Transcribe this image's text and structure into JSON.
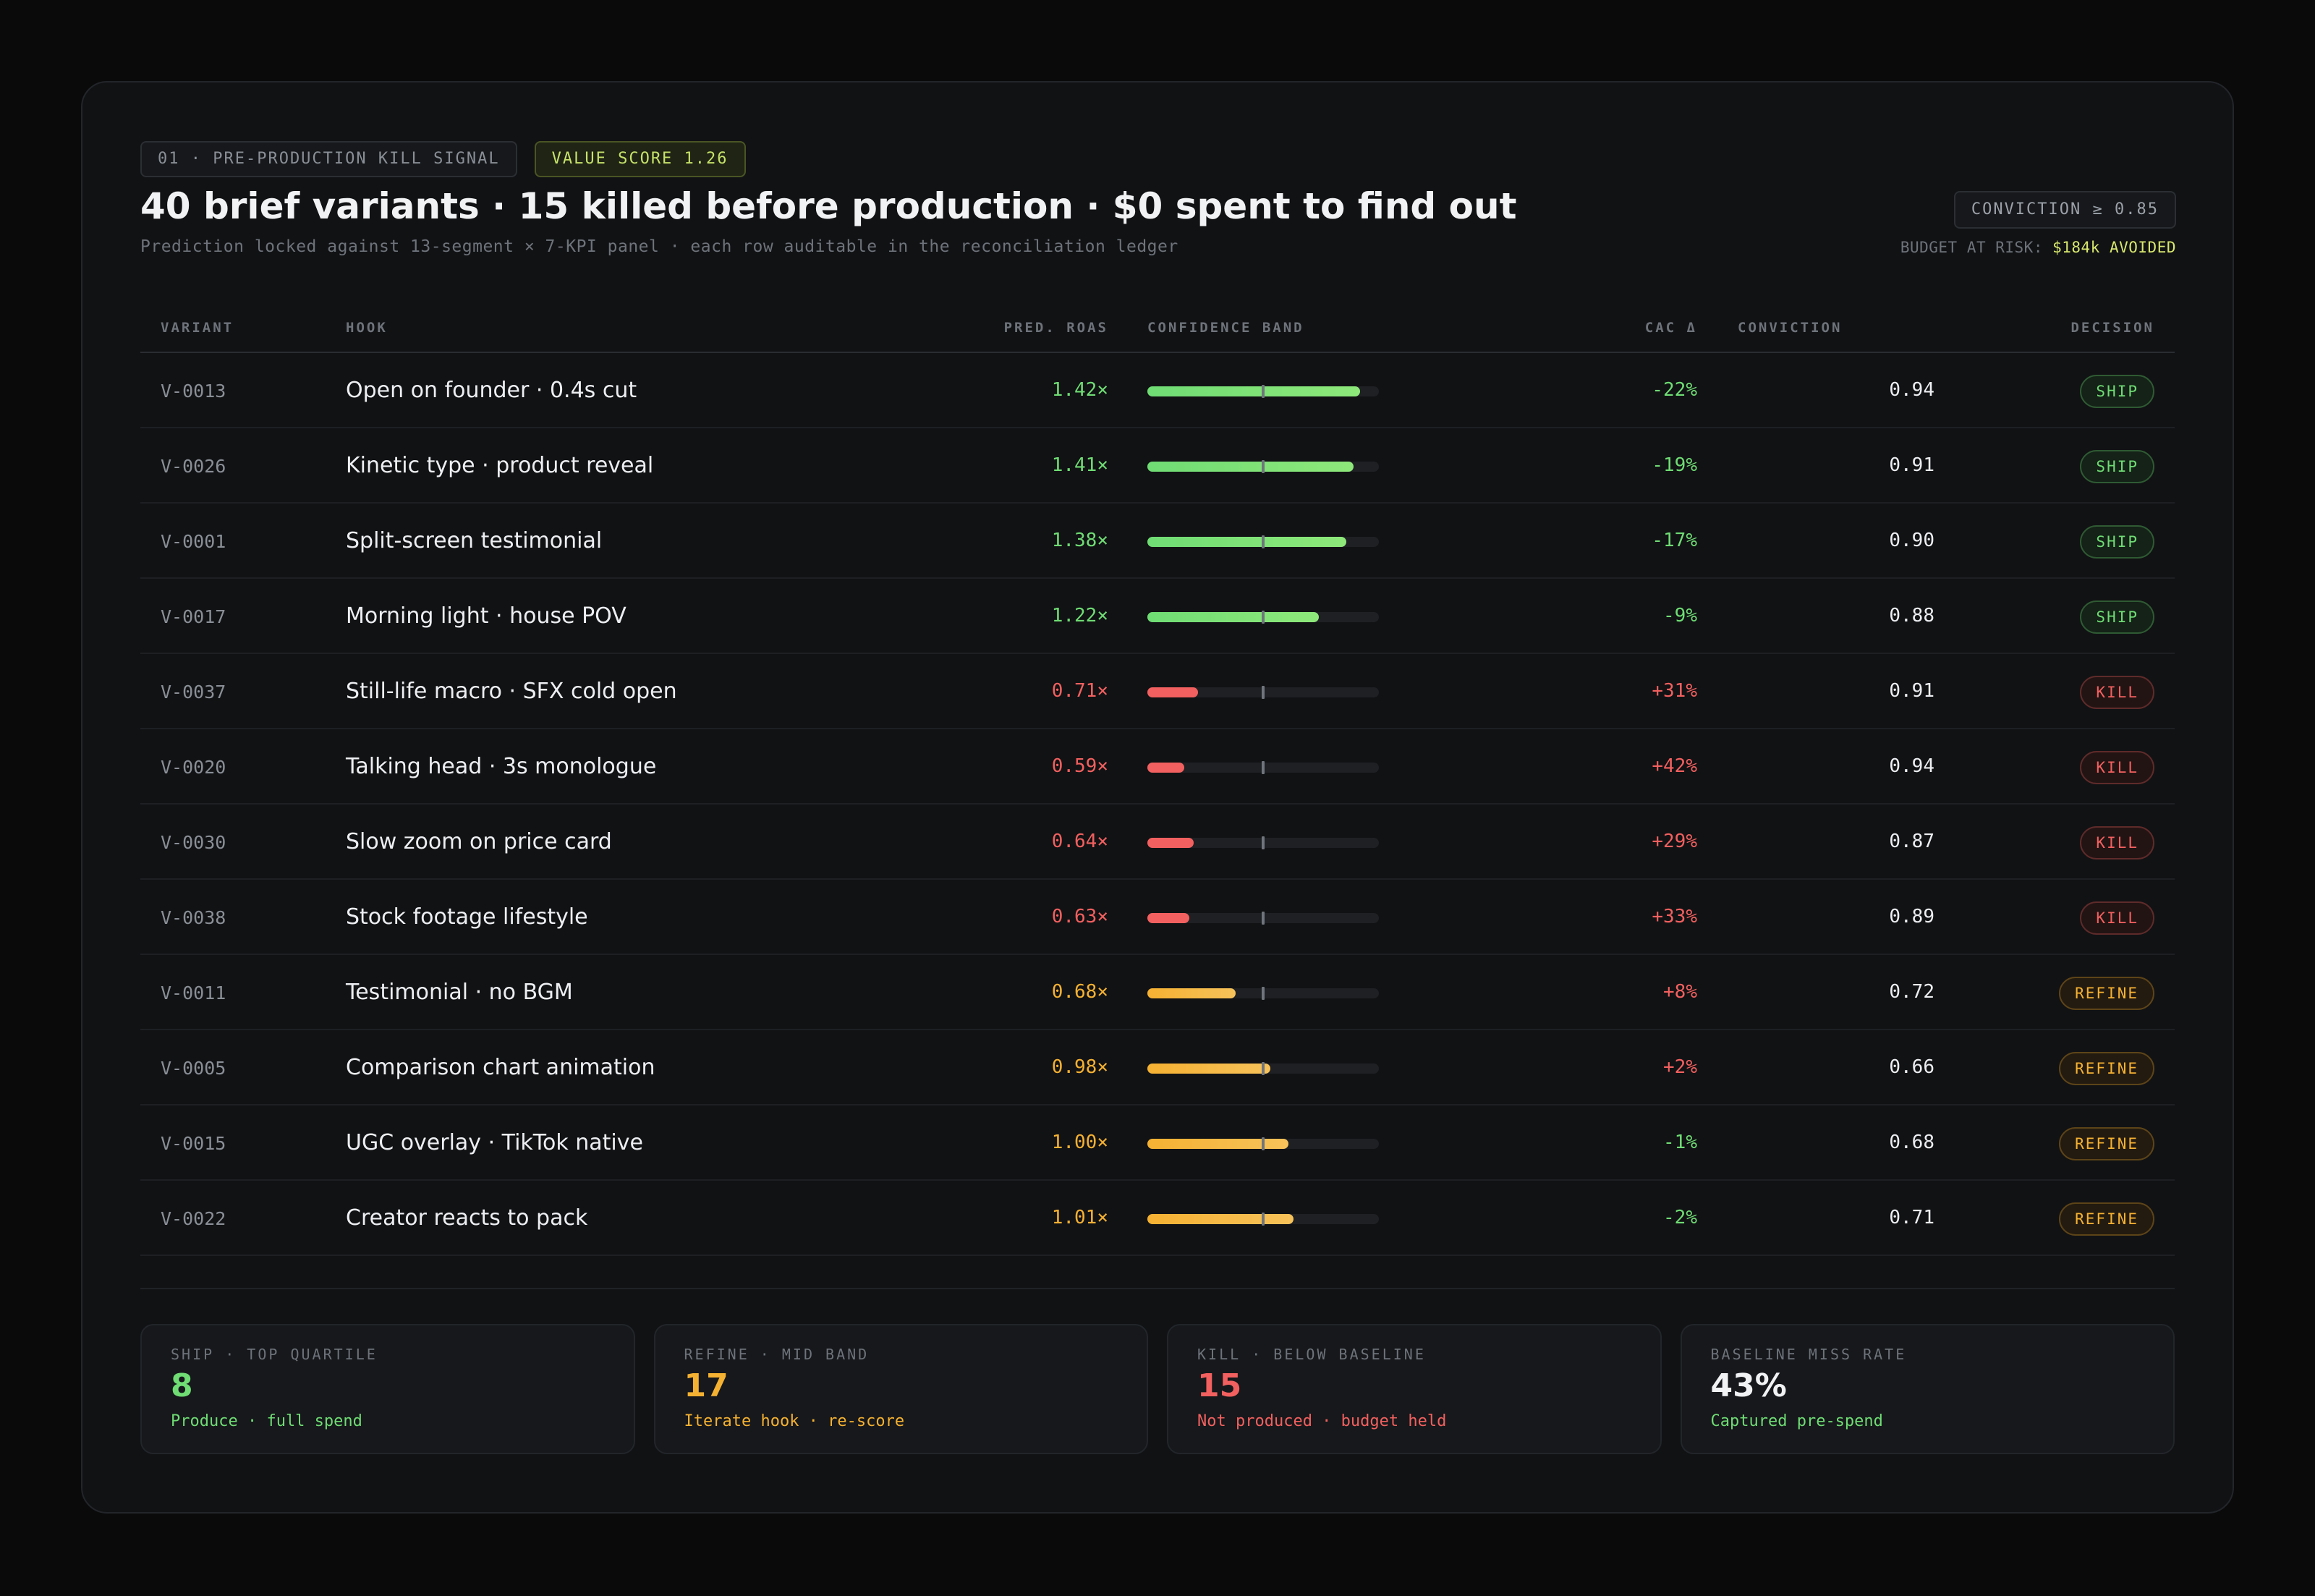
{
  "header": {
    "tag": "01 · PRE-PRODUCTION KILL SIGNAL",
    "value_score": "VALUE SCORE 1.26",
    "title": "40 brief variants · 15 killed before production · $0 spent to find out",
    "subtitle": "Prediction locked against 13-segment × 7-KPI panel · each row auditable in the reconciliation ledger",
    "conviction_badge": "CONVICTION ≥ 0.85",
    "budget_label": "BUDGET AT RISK:",
    "budget_value": "$184k AVOIDED"
  },
  "table": {
    "columns": {
      "variant": "VARIANT",
      "hook": "HOOK",
      "roas": "PRED. ROAS",
      "band": "CONFIDENCE BAND",
      "cac": "CAC Δ",
      "conviction": "CONVICTION",
      "decision": "DECISION"
    },
    "rows": [
      {
        "variant": "V-0013",
        "hook": "Open on founder · 0.4s cut",
        "roas": "1.42×",
        "band": 0.92,
        "cac": "-22%",
        "conviction": "0.94",
        "decision": "SHIP",
        "tone": "green",
        "cac_tone": "green"
      },
      {
        "variant": "V-0026",
        "hook": "Kinetic type · product reveal",
        "roas": "1.41×",
        "band": 0.89,
        "cac": "-19%",
        "conviction": "0.91",
        "decision": "SHIP",
        "tone": "green",
        "cac_tone": "green"
      },
      {
        "variant": "V-0001",
        "hook": "Split-screen testimonial",
        "roas": "1.38×",
        "band": 0.86,
        "cac": "-17%",
        "conviction": "0.90",
        "decision": "SHIP",
        "tone": "green",
        "cac_tone": "green"
      },
      {
        "variant": "V-0017",
        "hook": "Morning light · house POV",
        "roas": "1.22×",
        "band": 0.74,
        "cac": "-9%",
        "conviction": "0.88",
        "decision": "SHIP",
        "tone": "green",
        "cac_tone": "green"
      },
      {
        "variant": "V-0037",
        "hook": "Still-life macro · SFX cold open",
        "roas": "0.71×",
        "band": 0.22,
        "cac": "+31%",
        "conviction": "0.91",
        "decision": "KILL",
        "tone": "red",
        "cac_tone": "red"
      },
      {
        "variant": "V-0020",
        "hook": "Talking head · 3s monologue",
        "roas": "0.59×",
        "band": 0.16,
        "cac": "+42%",
        "conviction": "0.94",
        "decision": "KILL",
        "tone": "red",
        "cac_tone": "red"
      },
      {
        "variant": "V-0030",
        "hook": "Slow zoom on price card",
        "roas": "0.64×",
        "band": 0.2,
        "cac": "+29%",
        "conviction": "0.87",
        "decision": "KILL",
        "tone": "red",
        "cac_tone": "red"
      },
      {
        "variant": "V-0038",
        "hook": "Stock footage lifestyle",
        "roas": "0.63×",
        "band": 0.18,
        "cac": "+33%",
        "conviction": "0.89",
        "decision": "KILL",
        "tone": "red",
        "cac_tone": "red"
      },
      {
        "variant": "V-0011",
        "hook": "Testimonial · no BGM",
        "roas": "0.68×",
        "band": 0.38,
        "cac": "+8%",
        "conviction": "0.72",
        "decision": "REFINE",
        "tone": "amber",
        "cac_tone": "red"
      },
      {
        "variant": "V-0005",
        "hook": "Comparison chart animation",
        "roas": "0.98×",
        "band": 0.53,
        "cac": "+2%",
        "conviction": "0.66",
        "decision": "REFINE",
        "tone": "amber",
        "cac_tone": "red"
      },
      {
        "variant": "V-0015",
        "hook": "UGC overlay · TikTok native",
        "roas": "1.00×",
        "band": 0.61,
        "cac": "-1%",
        "conviction": "0.68",
        "decision": "REFINE",
        "tone": "amber",
        "cac_tone": "green"
      },
      {
        "variant": "V-0022",
        "hook": "Creator reacts to pack",
        "roas": "1.01×",
        "band": 0.63,
        "cac": "-2%",
        "conviction": "0.71",
        "decision": "REFINE",
        "tone": "amber",
        "cac_tone": "green"
      }
    ]
  },
  "stats": [
    {
      "label": "SHIP · TOP QUARTILE",
      "value": "8",
      "sub": "Produce · full spend",
      "tone": "green",
      "sub_tone": "green"
    },
    {
      "label": "REFINE · MID BAND",
      "value": "17",
      "sub": "Iterate hook · re-score",
      "tone": "amber",
      "sub_tone": "amber"
    },
    {
      "label": "KILL · BELOW BASELINE",
      "value": "15",
      "sub": "Not produced · budget held",
      "tone": "red",
      "sub_tone": "red"
    },
    {
      "label": "BASELINE MISS RATE",
      "value": "43%",
      "sub": "Captured pre-spend",
      "tone": "white",
      "sub_tone": "green"
    }
  ],
  "colors": {
    "green": "#6fdc74",
    "red": "#f2605f",
    "amber": "#f5b132",
    "accent": "#c6e26a",
    "background": "#111214"
  }
}
